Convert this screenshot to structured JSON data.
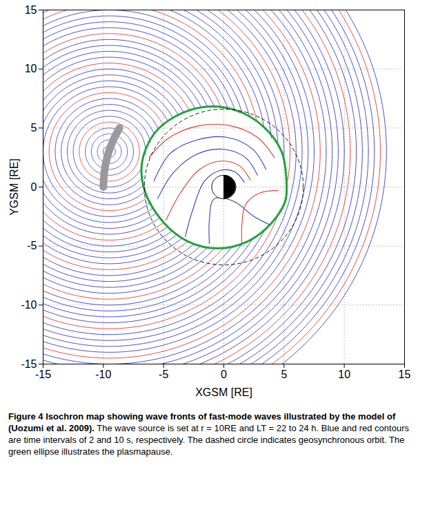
{
  "chart_data": {
    "type": "contour",
    "xlabel": "XGSM [RE]",
    "ylabel": "YGSM [RE]",
    "xlim": [
      -15,
      15
    ],
    "ylim": [
      -15,
      15
    ],
    "xticks": [
      -15,
      -10,
      -5,
      0,
      5,
      10,
      15
    ],
    "yticks": [
      -15,
      -10,
      -5,
      0,
      5,
      10,
      15
    ],
    "grid": true,
    "wave_fronts": {
      "center": {
        "x": -9.5,
        "y": 3
      },
      "series": [
        {
          "color": "#3b3bc4",
          "radii": [
            0.5,
            1,
            1.5,
            2,
            3,
            3.5,
            4,
            4.5,
            5.5,
            6,
            6.5,
            7,
            8,
            8.5,
            9,
            9.5,
            10.5,
            11,
            11.5,
            12,
            13,
            13.5,
            14,
            14.5,
            15.5,
            16,
            16.5,
            17,
            18,
            18.5,
            19,
            19.5,
            20.5,
            21,
            21.5,
            22,
            23
          ]
        },
        {
          "color": "#e8392f",
          "radii": [
            2.5,
            5,
            7.5,
            10,
            12.5,
            15,
            17.5,
            20,
            22.5
          ]
        }
      ]
    },
    "inner_fronts": [
      {
        "color": "#e8392f",
        "x": [
          -6.2,
          -4.5,
          -2,
          0.5,
          2.8,
          4.2
        ],
        "y": [
          2.5,
          4.2,
          5.2,
          5.2,
          4.2,
          2.5
        ]
      },
      {
        "color": "#3b3bc4",
        "x": [
          -5.8,
          -4.5,
          -2.2,
          0.3,
          2.4,
          3.5
        ],
        "y": [
          0.5,
          2.8,
          4,
          4.2,
          3.2,
          1.5
        ]
      },
      {
        "color": "#3b3bc4",
        "x": [
          -5.5,
          -4.2,
          -2.2,
          0,
          1.8,
          2.8
        ],
        "y": [
          -1,
          1.2,
          2.8,
          3.2,
          2.5,
          1
        ]
      },
      {
        "color": "#e8392f",
        "x": [
          -4.8,
          -3.6,
          -2,
          -0.2,
          1.3,
          2.2
        ],
        "y": [
          -2.8,
          -0.5,
          1.5,
          2.2,
          1.8,
          0.6
        ]
      },
      {
        "color": "#3b3bc4",
        "x": [
          -3.2,
          -2.6,
          -1.6,
          -0.3,
          0.9,
          1.7
        ],
        "y": [
          -4.2,
          -2,
          0.5,
          1.4,
          1.3,
          0.4
        ]
      },
      {
        "color": "#3b3bc4",
        "x": [
          -1.2,
          -1.2,
          -0.8,
          0.8,
          2.5,
          3.8
        ],
        "y": [
          -4.8,
          -2.8,
          -1,
          -1.2,
          -2.5,
          -3.2
        ]
      },
      {
        "color": "#e8392f",
        "x": [
          1.5,
          1.5,
          1.8,
          3,
          4.5
        ],
        "y": [
          -4.8,
          -3.2,
          -1.5,
          -0.5,
          -0.3
        ]
      }
    ],
    "source": {
      "color": "#9a9a9a",
      "x": [
        -10,
        -9.91,
        -9.66,
        -9.24,
        -8.66
      ],
      "y": [
        0,
        1.31,
        2.59,
        3.83,
        5
      ]
    },
    "plasmapause": {
      "color": "#1fa33a",
      "x": [
        5.2,
        4.8,
        3.2,
        1,
        -1.5,
        -4,
        -5.8,
        -6.8,
        -6.5,
        -5,
        -3,
        -0.5,
        2,
        4,
        5.1
      ],
      "y": [
        0.5,
        3,
        5.2,
        6.5,
        6.8,
        6,
        4.5,
        2,
        -0.5,
        -3,
        -4.6,
        -5.2,
        -4.6,
        -3,
        -1.2
      ]
    },
    "geosynchronous_orbit": {
      "radius": 6.6,
      "color": "#000000",
      "line_style": "dashed"
    },
    "earth": {
      "radius": 1
    },
    "caption_title": "Figure 4 Isochron map showing wave fronts of fast-mode waves illustrated by the model of (Uozumi et al. 2009).",
    "caption": "The wave source is set at r = 10RE and LT = 22 to 24 h. Blue and red contours are time intervals of 2 and 10 s, respectively. The dashed circle indicates geosynchronous orbit. The green ellipse illustrates the plasmapause."
  }
}
